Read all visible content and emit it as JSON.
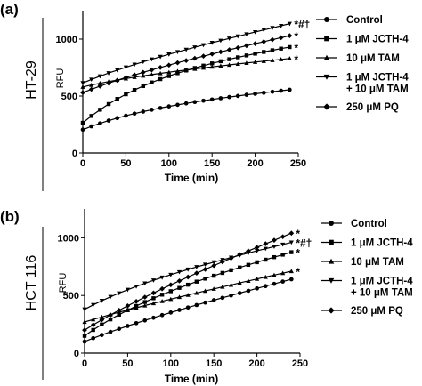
{
  "chart_data": [
    {
      "type": "line",
      "panel_label": "(a)",
      "cell_line": "HT-29",
      "ylabel": "RFU",
      "xlabel": "Time (min)",
      "xlim": [
        0,
        250
      ],
      "ylim": [
        0,
        1250
      ],
      "xticks": [
        0,
        50,
        100,
        150,
        200,
        250
      ],
      "yticks": [
        0,
        500,
        1000
      ],
      "legend_position": "right",
      "series": [
        {
          "name": "Control",
          "marker": "circle",
          "annotation": "",
          "start": 205,
          "end": 555,
          "curve": 0.5
        },
        {
          "name": "1 μM JCTH-4",
          "marker": "square",
          "annotation": "*",
          "start": 265,
          "end": 930,
          "curve": 0.6
        },
        {
          "name": "10 μM TAM",
          "marker": "triangle-up",
          "annotation": "*",
          "start": 580,
          "end": 830,
          "curve": 0.3
        },
        {
          "name": "1 μM JCTH-4\n+ 10 μM TAM",
          "marker": "triangle-down",
          "annotation": "*#†",
          "start": 615,
          "end": 1135,
          "curve": 0.2
        },
        {
          "name": "250 μM PQ",
          "marker": "diamond",
          "annotation": "*",
          "start": 530,
          "end": 1030,
          "curve": 0.2
        }
      ]
    },
    {
      "type": "line",
      "panel_label": "(b)",
      "cell_line": "HCT 116",
      "ylabel": "RFU",
      "xlabel": "Time (min)",
      "xlim": [
        0,
        250
      ],
      "ylim": [
        0,
        1250
      ],
      "xticks": [
        0,
        50,
        100,
        150,
        200,
        250
      ],
      "yticks": [
        0,
        500,
        1000
      ],
      "legend_position": "right",
      "series": [
        {
          "name": "Control",
          "marker": "circle",
          "annotation": "",
          "start": 100,
          "end": 640,
          "curve": 0.15
        },
        {
          "name": "1 μM JCTH-4",
          "marker": "square",
          "annotation": "*",
          "start": 150,
          "end": 875,
          "curve": 0.35
        },
        {
          "name": "10 μM TAM",
          "marker": "triangle-up",
          "annotation": "*",
          "start": 270,
          "end": 710,
          "curve": 0.1
        },
        {
          "name": "1 μM JCTH-4\n+ 10 μM TAM",
          "marker": "triangle-down",
          "annotation": "*#†",
          "start": 380,
          "end": 960,
          "curve": 0.3
        },
        {
          "name": "250 μM PQ",
          "marker": "diamond",
          "annotation": "*",
          "start": 200,
          "end": 1040,
          "curve": 0.15
        }
      ]
    }
  ]
}
